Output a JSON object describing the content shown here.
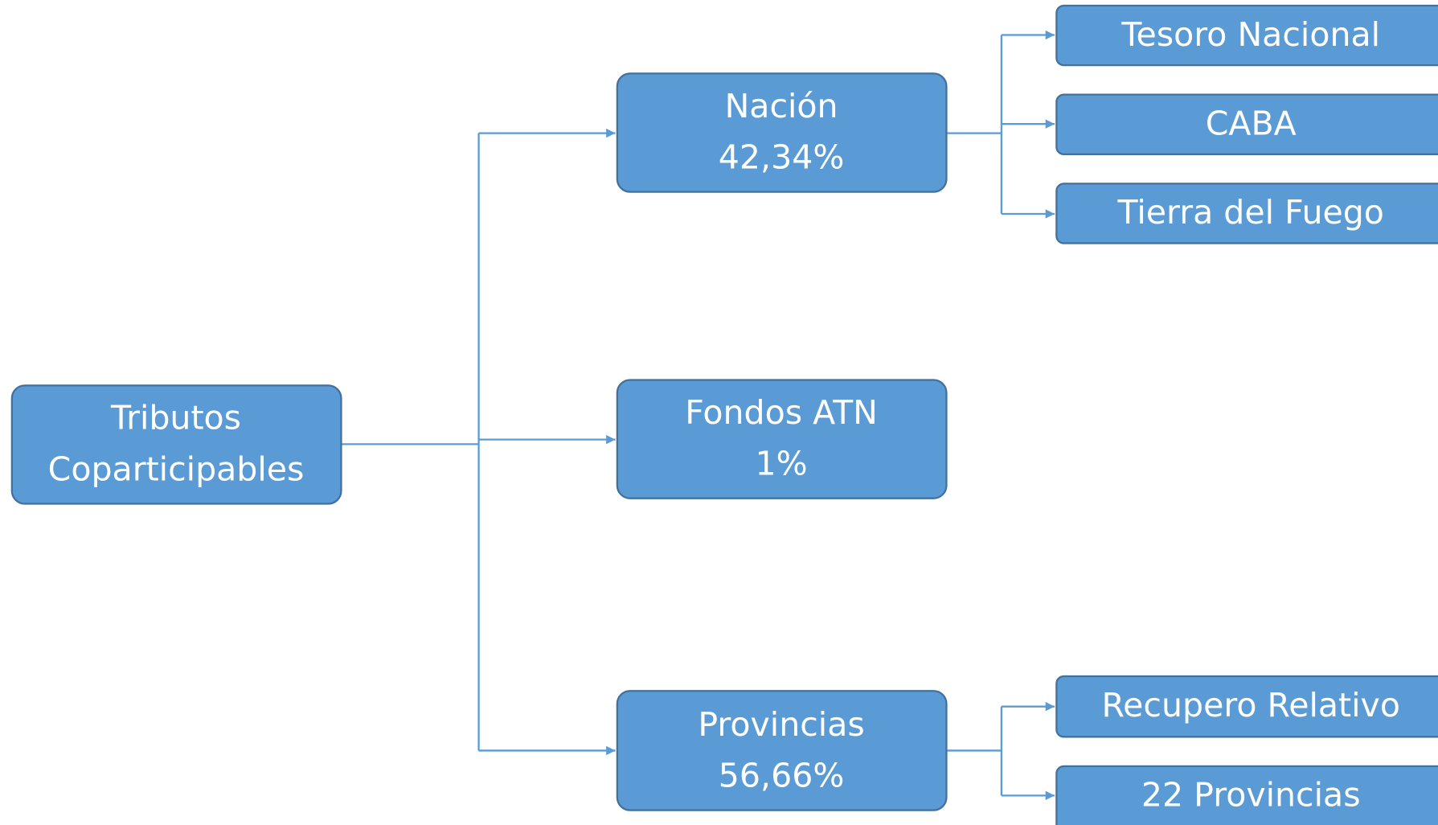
{
  "root": {
    "lines": [
      "Tributos",
      "Coparticipables"
    ]
  },
  "branches": [
    {
      "name": "Nación",
      "share": "42,34%",
      "children": [
        "Tesoro Nacional",
        "CABA",
        "Tierra del Fuego"
      ]
    },
    {
      "name": "Fondos ATN",
      "share": "1%",
      "children": []
    },
    {
      "name": "Provincias",
      "share": "56,66%",
      "children": [
        "Recupero Relativo",
        "22 Provincias"
      ]
    }
  ]
}
